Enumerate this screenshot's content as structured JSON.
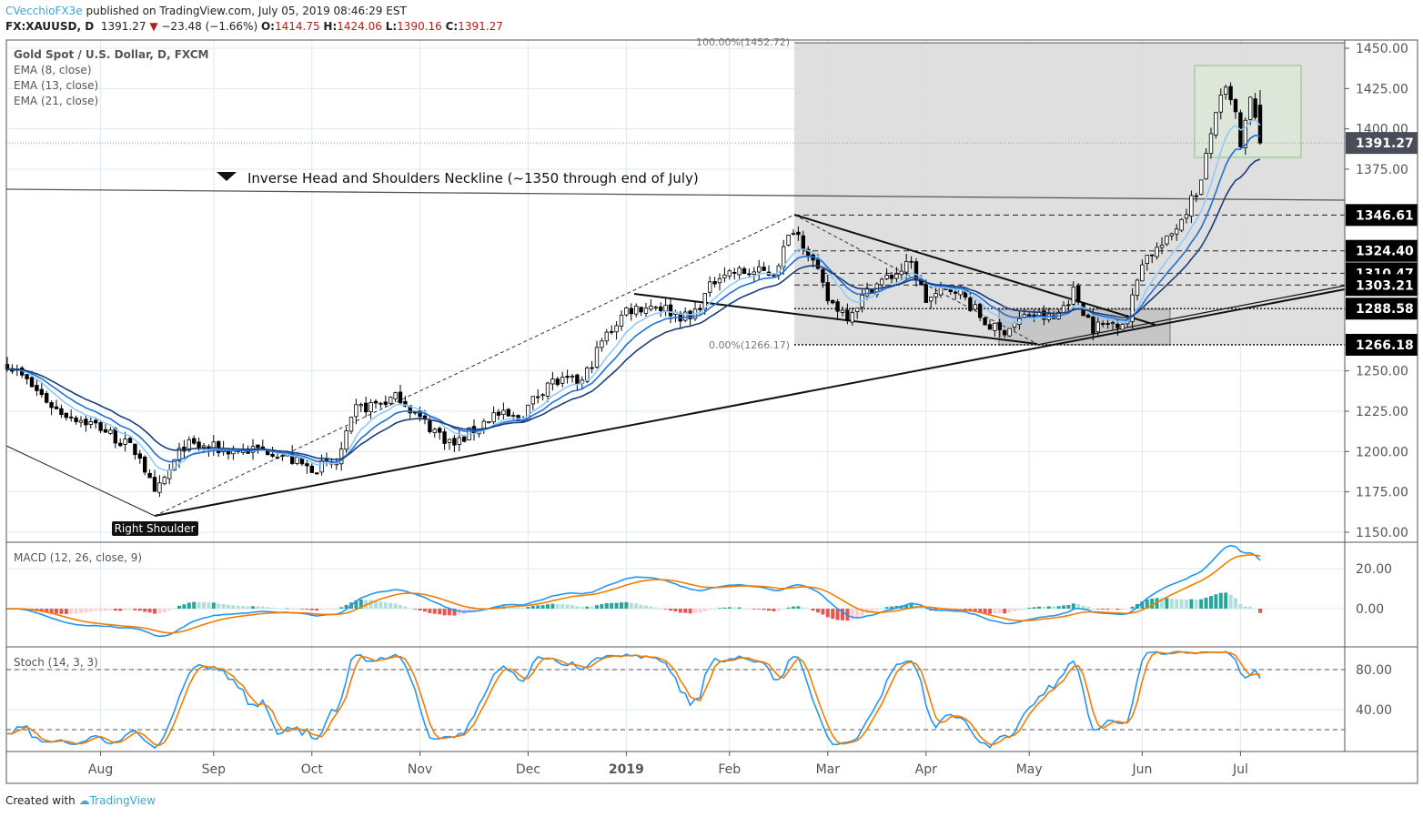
{
  "header": {
    "author": "CVecchioFX3e",
    "published": "published on TradingView.com, July 05, 2019 08:46:29 EST",
    "symbol": "FX:XAUUSD, D",
    "last": "1391.27",
    "change": "−23.48 (−1.66%)",
    "o_label": "O:",
    "o": "1414.75",
    "h_label": "H:",
    "h": "1424.06",
    "l_label": "L:",
    "l": "1390.16",
    "c_label": "C:",
    "c": "1391.27"
  },
  "legend": {
    "title": "Gold Spot / U.S. Dollar, D, FXCM",
    "ema8": "EMA (8, close)",
    "ema13": "EMA (13, close)",
    "ema21": "EMA (21, close)",
    "macd": "MACD (12, 26, close, 9)",
    "stoch": "Stoch (14, 3, 3)"
  },
  "annotations": {
    "neckline": "Inverse Head and Shoulders Neckline (~1350 through end of July)",
    "right_shoulder": "Right Shoulder",
    "fib_top": "100.00%(1452.72)",
    "fib_bottom": "0.00%(1266.17)"
  },
  "footer": {
    "created": "Created with",
    "brand": "TradingView"
  },
  "colors": {
    "ema8": "#90caf9",
    "ema13": "#1e6fd9",
    "ema21": "#1a3e7a",
    "macd": "#2196f3",
    "signal": "#f57c00",
    "hist_pos": "#26a69a",
    "hist_neg": "#ef5350"
  },
  "chart_data": {
    "type": "candlestick",
    "title": "Gold Spot / U.S. Dollar, D, FXCM",
    "ylim": [
      1150,
      1450
    ],
    "price_ticks": [
      "1450.00",
      "1425.00",
      "1400.00",
      "1375.00",
      "1250.00",
      "1225.00",
      "1200.00",
      "1175.00",
      "1150.00"
    ],
    "price_tick_values": [
      1450,
      1425,
      1400,
      1375,
      1250,
      1225,
      1200,
      1175,
      1150
    ],
    "level_labels": [
      {
        "label": "1391.27",
        "value": 1391.27,
        "current": true
      },
      {
        "label": "1346.61",
        "value": 1346.61
      },
      {
        "label": "1324.40",
        "value": 1324.4
      },
      {
        "label": "1310.47",
        "value": 1310.47
      },
      {
        "label": "1303.21",
        "value": 1303.21
      },
      {
        "label": "1288.58",
        "value": 1288.58
      },
      {
        "label": "1266.18",
        "value": 1266.18
      }
    ],
    "x_ticks": [
      {
        "label": "Aug",
        "bar": 19
      },
      {
        "label": "Sep",
        "bar": 42
      },
      {
        "label": "Oct",
        "bar": 62
      },
      {
        "label": "Nov",
        "bar": 84
      },
      {
        "label": "Dec",
        "bar": 106
      },
      {
        "label": "2019",
        "bar": 126,
        "bold": true
      },
      {
        "label": "Feb",
        "bar": 147
      },
      {
        "label": "Mar",
        "bar": 167
      },
      {
        "label": "Apr",
        "bar": 187
      },
      {
        "label": "May",
        "bar": 208
      },
      {
        "label": "Jun",
        "bar": 231
      },
      {
        "label": "Jul",
        "bar": 251
      }
    ],
    "bars": 256,
    "close_keypoints": [
      [
        0,
        1255
      ],
      [
        10,
        1226
      ],
      [
        19,
        1215
      ],
      [
        27,
        1198
      ],
      [
        30,
        1172
      ],
      [
        36,
        1204
      ],
      [
        45,
        1201
      ],
      [
        54,
        1201
      ],
      [
        61,
        1190
      ],
      [
        67,
        1192
      ],
      [
        71,
        1226
      ],
      [
        80,
        1234
      ],
      [
        84,
        1220
      ],
      [
        91,
        1204
      ],
      [
        99,
        1223
      ],
      [
        104,
        1220
      ],
      [
        110,
        1243
      ],
      [
        117,
        1243
      ],
      [
        121,
        1268
      ],
      [
        126,
        1288
      ],
      [
        132,
        1291
      ],
      [
        139,
        1282
      ],
      [
        145,
        1311
      ],
      [
        156,
        1311
      ],
      [
        160,
        1339
      ],
      [
        163,
        1325
      ],
      [
        167,
        1294
      ],
      [
        171,
        1285
      ],
      [
        176,
        1302
      ],
      [
        184,
        1316
      ],
      [
        187,
        1294
      ],
      [
        193,
        1302
      ],
      [
        199,
        1280
      ],
      [
        202,
        1274
      ],
      [
        208,
        1285
      ],
      [
        213,
        1282
      ],
      [
        217,
        1299
      ],
      [
        221,
        1277
      ],
      [
        228,
        1282
      ],
      [
        231,
        1319
      ],
      [
        236,
        1330
      ],
      [
        239,
        1345
      ],
      [
        243,
        1367
      ],
      [
        246,
        1412
      ],
      [
        248,
        1423
      ],
      [
        250,
        1409
      ],
      [
        251,
        1387
      ],
      [
        253,
        1418
      ],
      [
        255,
        1391.27
      ]
    ],
    "last_bar": {
      "open": 1414.75,
      "high": 1424.06,
      "low": 1390.16,
      "close": 1391.27
    },
    "indicators": {
      "ema_periods": [
        8,
        13,
        21
      ],
      "macd": {
        "fast": 12,
        "slow": 26,
        "signal": 9,
        "ticks": [
          "20.00",
          "0.00"
        ],
        "tick_values": [
          20,
          0
        ]
      },
      "stoch": {
        "k": 14,
        "smooth_k": 3,
        "d": 3,
        "ticks": [
          "80.00",
          "40.00"
        ],
        "tick_values": [
          80,
          40
        ],
        "bands": [
          80,
          20
        ]
      }
    }
  }
}
